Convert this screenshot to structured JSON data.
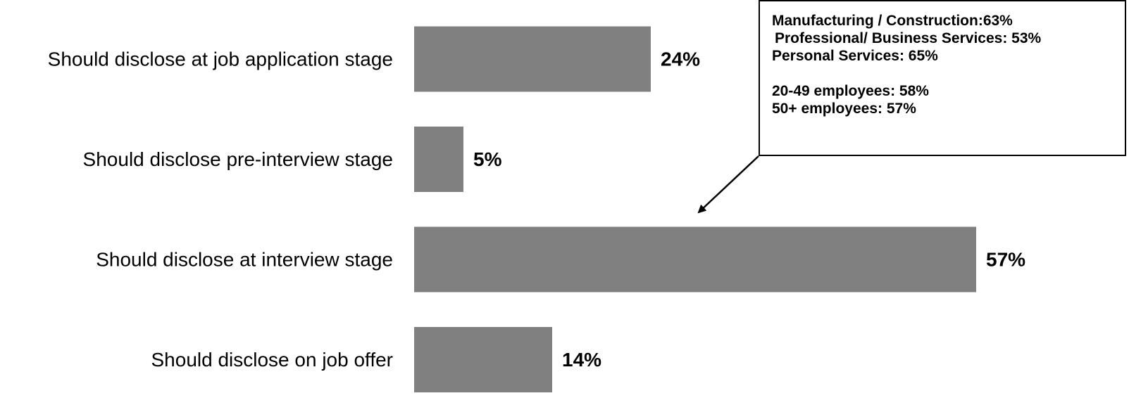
{
  "chart_data": {
    "type": "bar",
    "orientation": "horizontal",
    "categories": [
      "Should disclose at job application stage",
      "Should disclose pre-interview stage",
      "Should disclose at interview stage",
      "Should disclose on job offer"
    ],
    "values": [
      24,
      5,
      57,
      14
    ],
    "value_labels": [
      "24%",
      "5%",
      "57%",
      "14%"
    ],
    "xlim": [
      0,
      60
    ],
    "grid": false,
    "bar_color": "#808080",
    "annotation": {
      "points_to": "Should disclose at interview stage",
      "lines_group1": [
        "Manufacturing / Construction:63%",
        "Professional/ Business Services: 53%",
        "Personal Services: 65%"
      ],
      "lines_group2": [
        "20-49 employees: 58%",
        "50+ employees: 57%"
      ]
    }
  }
}
